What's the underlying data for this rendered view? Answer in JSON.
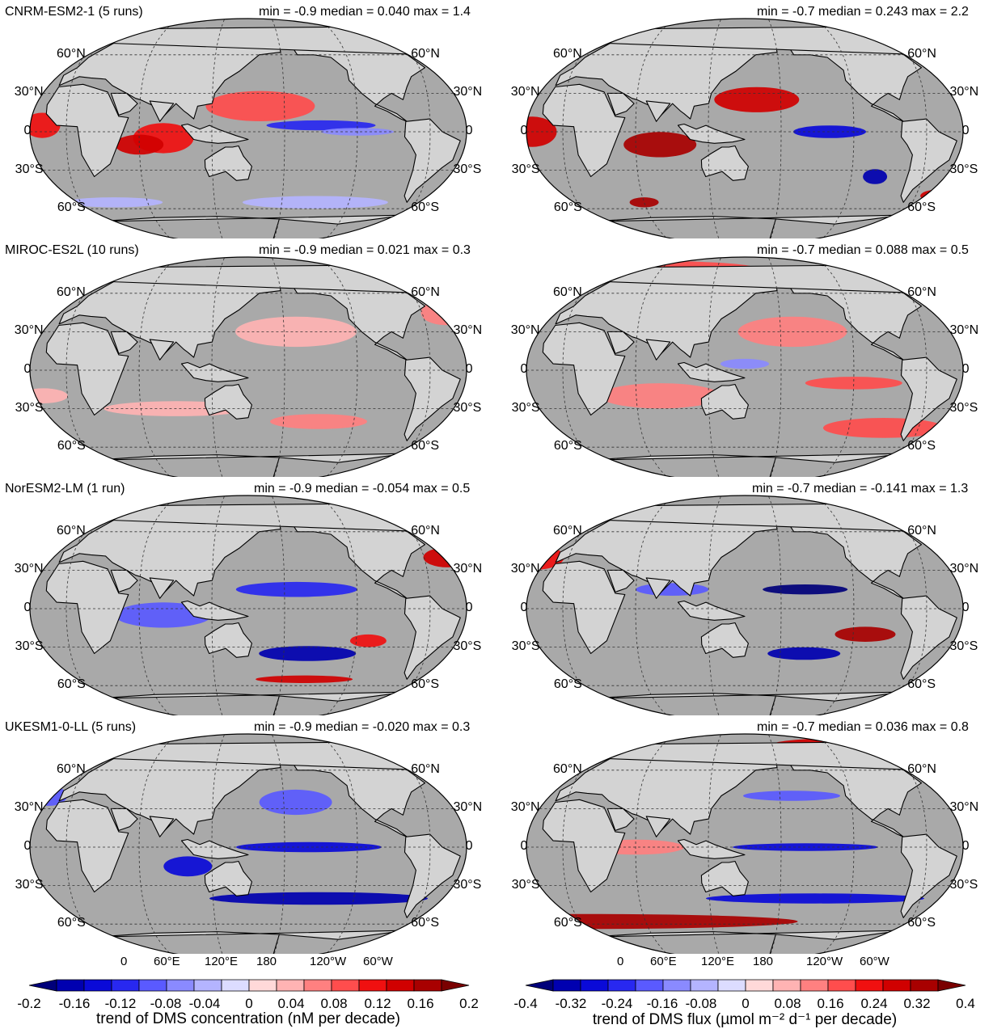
{
  "colors": {
    "land": "#d3d3d3",
    "ocean_neutral": "#a9a9a9",
    "coast": "#000000",
    "pos_scale": [
      "#ffd9d9",
      "#ffb3b3",
      "#ff8080",
      "#ff4d4d",
      "#f01010",
      "#d00000",
      "#a80000",
      "#7a0000"
    ],
    "neg_scale": [
      "#dcdcff",
      "#b4b4ff",
      "#8a8aff",
      "#5a5aff",
      "#2828f0",
      "#0a0ad8",
      "#0000b0",
      "#00007a"
    ]
  },
  "lat_labels": {
    "n60": "60°N",
    "n30": "30°N",
    "eq": "0",
    "s30": "30°S",
    "s60": "60°S"
  },
  "lon_labels": [
    "60°E",
    "120°E",
    "180",
    "120°W",
    "60°W",
    "0"
  ],
  "panels": [
    {
      "model": "CNRM-ESM2-1 (5 runs)",
      "stats": "min = -0.9 median = 0.040 max = 1.4"
    },
    {
      "model": "",
      "stats": "min = -0.7 median = 0.243 max = 2.2"
    },
    {
      "model": "MIROC-ES2L (10 runs)",
      "stats": "min = -0.9 median = 0.021 max = 0.3"
    },
    {
      "model": "",
      "stats": "min = -0.7 median = 0.088 max = 0.5"
    },
    {
      "model": "NorESM2-LM (1 run)",
      "stats": "min = -0.9 median = -0.054 max = 0.5"
    },
    {
      "model": "",
      "stats": "min = -0.7 median = -0.141 max = 1.3"
    },
    {
      "model": "UKESM1-0-LL (5 runs)",
      "stats": "min = -0.9 median = -0.020 max = 0.3"
    },
    {
      "model": "",
      "stats": "min = -0.7 median = 0.036 max = 0.8"
    }
  ],
  "colorbars": [
    {
      "ticks": [
        "-0.2",
        "-0.16",
        "-0.12",
        "-0.08",
        "-0.04",
        "0",
        "0.04",
        "0.08",
        "0.12",
        "0.16",
        "0.2"
      ],
      "label": "trend of DMS concentration (nM per decade)"
    },
    {
      "ticks": [
        "-0.4",
        "-0.32",
        "-0.24",
        "-0.16",
        "-0.08",
        "0",
        "0.08",
        "0.16",
        "0.24",
        "0.32",
        "0.4"
      ],
      "label": "trend of DMS flux (µmol m⁻² d⁻¹ per decade)"
    }
  ]
}
